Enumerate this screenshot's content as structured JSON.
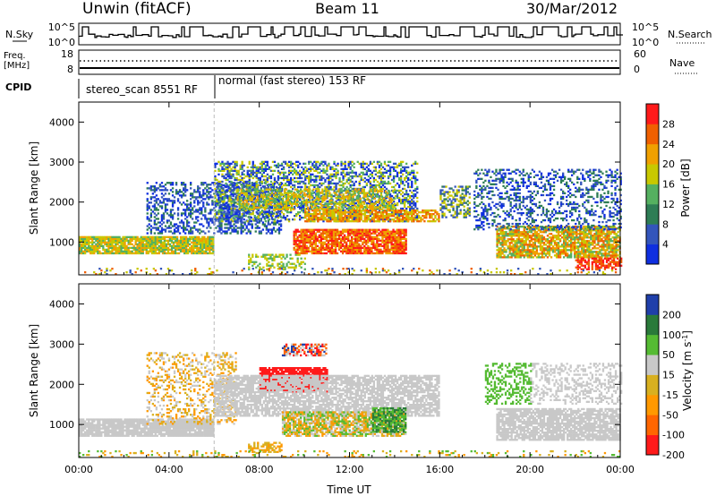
{
  "header": {
    "station": "Unwin (fitACF)",
    "beam": "Beam 11",
    "date": "30/Mar/2012"
  },
  "strips": {
    "nsky": {
      "label": "N.Sky",
      "ticks": [
        "10^5",
        "10^0"
      ],
      "right_ticks": [
        "10^5",
        "10^0"
      ],
      "right_label": "N.Search"
    },
    "freq": {
      "label_line1": "Freq.",
      "label_line2": "[MHz]",
      "ticks": [
        "18",
        "8"
      ],
      "right_ticks": [
        "60",
        "0"
      ],
      "right_label": "Nave"
    },
    "cpid": {
      "label": "CPID",
      "segments": [
        "stereo_scan 8551 RF",
        "normal (fast stereo) 153 RF"
      ]
    }
  },
  "colors": {
    "power": [
      "#0f2fe0",
      "#3355bb",
      "#2e7d55",
      "#55b060",
      "#c8c800",
      "#f0a000",
      "#f06000",
      "#ff1a1a"
    ],
    "velocity": [
      "#ff1a1a",
      "#ff6600",
      "#ff9900",
      "#d8b020",
      "#c8c8c8",
      "#55bb33",
      "#2a7a3a",
      "#1f3faa"
    ],
    "ground_scatter": "#c8c8c8"
  },
  "chart_data": [
    {
      "type": "heatmap",
      "title": "Power",
      "xlabel": "",
      "ylabel": "Slant Range [km]",
      "xlim": [
        "00:00",
        "24:00"
      ],
      "ylim": [
        180,
        4500
      ],
      "x_tick_labels": [
        "00:00",
        "04:00",
        "08:00",
        "12:00",
        "16:00",
        "20:00",
        "00:00"
      ],
      "y_tick_labels": [
        "1000",
        "2000",
        "3000",
        "4000"
      ],
      "colorbar": {
        "label": "Power [dB]",
        "ticks": [
          "4",
          "8",
          "12",
          "16",
          "20",
          "24",
          "28"
        ],
        "range": [
          0,
          30
        ]
      }
    },
    {
      "type": "heatmap",
      "title": "Velocity",
      "xlabel": "Time UT",
      "ylabel": "Slant Range [km]",
      "xlim": [
        "00:00",
        "24:00"
      ],
      "ylim": [
        180,
        4500
      ],
      "x_tick_labels": [
        "00:00",
        "04:00",
        "08:00",
        "12:00",
        "16:00",
        "20:00",
        "00:00"
      ],
      "y_tick_labels": [
        "1000",
        "2000",
        "3000",
        "4000"
      ],
      "colorbar": {
        "label": "Velocity [m s^-1]",
        "ticks": [
          "200",
          "100",
          "50",
          "15",
          "-15",
          "-50",
          "-100",
          "-200"
        ]
      }
    }
  ]
}
